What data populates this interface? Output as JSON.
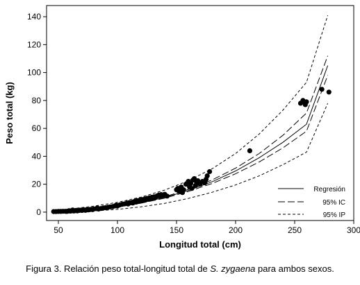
{
  "chart_data": {
    "type": "scatter",
    "xlabel": "Longitud total (cm)",
    "ylabel": "Peso total (kg)",
    "xlim": [
      40,
      300
    ],
    "ylim": [
      -6,
      148
    ],
    "x_ticks": [
      50,
      100,
      150,
      200,
      250,
      300
    ],
    "y_ticks": [
      0,
      20,
      40,
      60,
      80,
      100,
      120,
      140
    ],
    "grid": false,
    "legend_placement": "bottom-right",
    "points": [
      [
        46,
        0.4
      ],
      [
        48,
        0.4
      ],
      [
        50,
        0.5
      ],
      [
        52,
        0.5
      ],
      [
        54,
        0.6
      ],
      [
        56,
        0.6
      ],
      [
        57,
        0.5
      ],
      [
        58,
        0.7
      ],
      [
        59,
        1.0
      ],
      [
        60,
        0.7
      ],
      [
        61,
        0.9
      ],
      [
        62,
        1.5
      ],
      [
        63,
        0.8
      ],
      [
        64,
        1.0
      ],
      [
        65,
        1.2
      ],
      [
        66,
        0.9
      ],
      [
        67,
        1.1
      ],
      [
        68,
        1.3
      ],
      [
        69,
        1.4
      ],
      [
        70,
        1.2
      ],
      [
        71,
        1.6
      ],
      [
        72,
        1.5
      ],
      [
        73,
        1.3
      ],
      [
        74,
        1.8
      ],
      [
        75,
        1.6
      ],
      [
        76,
        1.7
      ],
      [
        77,
        1.9
      ],
      [
        78,
        2.0
      ],
      [
        79,
        1.8
      ],
      [
        80,
        2.3
      ],
      [
        82,
        2.5
      ],
      [
        83,
        3.0
      ],
      [
        84,
        2.2
      ],
      [
        86,
        2.6
      ],
      [
        88,
        3.0
      ],
      [
        90,
        3.2
      ],
      [
        92,
        3.5
      ],
      [
        94,
        3.8
      ],
      [
        96,
        4.0
      ],
      [
        98,
        4.5
      ],
      [
        99,
        5.0
      ],
      [
        100,
        4.4
      ],
      [
        102,
        5.2
      ],
      [
        104,
        5.6
      ],
      [
        106,
        5.9
      ],
      [
        108,
        6.4
      ],
      [
        109,
        5.8
      ],
      [
        110,
        6.8
      ],
      [
        112,
        7.0
      ],
      [
        113,
        6.5
      ],
      [
        114,
        7.5
      ],
      [
        115,
        7.9
      ],
      [
        116,
        7.2
      ],
      [
        117,
        8.2
      ],
      [
        118,
        7.6
      ],
      [
        119,
        8.6
      ],
      [
        120,
        8.0
      ],
      [
        121,
        9.0
      ],
      [
        122,
        8.4
      ],
      [
        123,
        9.4
      ],
      [
        124,
        8.8
      ],
      [
        125,
        9.8
      ],
      [
        126,
        9.2
      ],
      [
        127,
        10.2
      ],
      [
        128,
        9.6
      ],
      [
        129,
        10.6
      ],
      [
        130,
        10.1
      ],
      [
        131,
        11.0
      ],
      [
        132,
        10.4
      ],
      [
        133,
        11.3
      ],
      [
        134,
        11.8
      ],
      [
        135,
        12.2
      ],
      [
        136,
        11.6
      ],
      [
        137,
        12.6
      ],
      [
        138,
        12.0
      ],
      [
        140,
        12.8
      ],
      [
        142,
        11.5
      ],
      [
        150,
        16.0
      ],
      [
        151,
        17.0
      ],
      [
        152,
        15.0
      ],
      [
        153,
        16.5
      ],
      [
        154,
        18.0
      ],
      [
        155,
        14.0
      ],
      [
        156,
        16.0
      ],
      [
        158,
        20.0
      ],
      [
        160,
        22.0
      ],
      [
        161,
        18.0
      ],
      [
        162,
        20.5
      ],
      [
        163,
        17.0
      ],
      [
        164,
        23.0
      ],
      [
        165,
        24.0
      ],
      [
        166,
        19.0
      ],
      [
        167,
        21.0
      ],
      [
        168,
        22.5
      ],
      [
        170,
        20.0
      ],
      [
        172,
        22.0
      ],
      [
        174,
        21.0
      ],
      [
        175,
        23.5
      ],
      [
        176,
        26.0
      ],
      [
        178,
        29.0
      ],
      [
        212,
        44.0
      ],
      [
        255,
        78.0
      ],
      [
        257,
        80.0
      ],
      [
        258,
        79.0
      ],
      [
        259,
        77.0
      ],
      [
        260,
        79.0
      ],
      [
        273,
        88.0
      ],
      [
        279,
        86.0
      ]
    ],
    "series": [
      {
        "name": "Regresión",
        "x": [
          45,
          60,
          80,
          100,
          120,
          140,
          160,
          180,
          200,
          220,
          240,
          260,
          278
        ],
        "y": [
          0.4,
          0.9,
          2.1,
          3.9,
          6.7,
          10.5,
          15.5,
          21.7,
          29.5,
          39.0,
          50.0,
          63.0,
          105.0
        ]
      },
      {
        "name": "95% IC",
        "x": [
          45,
          60,
          80,
          100,
          120,
          140,
          160,
          180,
          200,
          220,
          240,
          260,
          278
        ],
        "y": [
          0.5,
          1.0,
          2.3,
          4.1,
          7.0,
          11.0,
          16.3,
          23.0,
          31.5,
          42.0,
          55.0,
          71.0,
          112.0
        ]
      },
      {
        "name": "95% IC lower",
        "x": [
          45,
          60,
          80,
          100,
          120,
          140,
          160,
          180,
          200,
          220,
          240,
          260,
          278
        ],
        "y": [
          0.3,
          0.8,
          1.9,
          3.7,
          6.4,
          10.0,
          14.8,
          20.5,
          27.5,
          36.0,
          46.0,
          58.0,
          98.0
        ]
      },
      {
        "name": "95% IP",
        "x": [
          45,
          60,
          80,
          100,
          120,
          140,
          160,
          180,
          200,
          220,
          240,
          260,
          278
        ],
        "y": [
          1.2,
          2.3,
          4.3,
          7.0,
          10.8,
          15.8,
          22.5,
          31.0,
          42.0,
          56.0,
          73.0,
          93.0,
          141.0
        ]
      },
      {
        "name": "95% IP lower",
        "x": [
          45,
          60,
          80,
          100,
          120,
          140,
          160,
          180,
          200,
          220,
          240,
          260,
          278
        ],
        "y": [
          0.0,
          0.1,
          0.8,
          2.0,
          3.8,
          6.3,
          9.8,
          14.2,
          19.5,
          26.0,
          34.0,
          43.0,
          78.0
        ]
      }
    ],
    "legend": [
      {
        "label": "Regresión",
        "style": "solid"
      },
      {
        "label": "95% IC",
        "style": "long-dash"
      },
      {
        "label": "95% IP",
        "style": "short-dash"
      }
    ]
  },
  "caption": {
    "prefix": "Figura 3. Relación peso total-longitud total de ",
    "species": "S. zygaena",
    "suffix": " para ambos sexos."
  }
}
